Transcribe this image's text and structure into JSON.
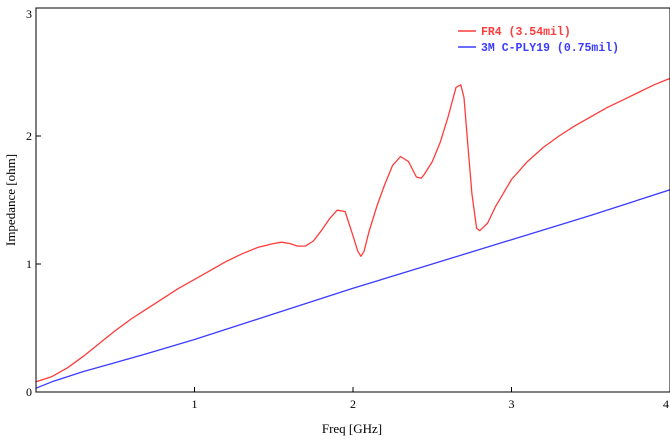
{
  "chart_data": {
    "type": "line",
    "title": "",
    "xlabel": "Freq [GHz]",
    "ylabel": "Impedance [ohm]",
    "xlim": [
      0,
      4
    ],
    "ylim": [
      0,
      3
    ],
    "xticks": [
      1,
      2,
      3,
      4
    ],
    "yticks": [
      0,
      1,
      2,
      3
    ],
    "grid": false,
    "legend_position": "top-right",
    "series": [
      {
        "name": "FR4 (3.54mil)",
        "color": "#ff3b3b",
        "x": [
          0.0,
          0.1,
          0.2,
          0.3,
          0.4,
          0.5,
          0.6,
          0.7,
          0.8,
          0.9,
          1.0,
          1.1,
          1.2,
          1.3,
          1.4,
          1.5,
          1.55,
          1.6,
          1.65,
          1.7,
          1.75,
          1.8,
          1.85,
          1.9,
          1.95,
          2.0,
          2.03,
          2.05,
          2.07,
          2.1,
          2.15,
          2.2,
          2.25,
          2.3,
          2.35,
          2.4,
          2.43,
          2.45,
          2.5,
          2.55,
          2.6,
          2.65,
          2.68,
          2.7,
          2.72,
          2.75,
          2.78,
          2.8,
          2.85,
          2.9,
          3.0,
          3.1,
          3.2,
          3.3,
          3.4,
          3.5,
          3.6,
          3.7,
          3.8,
          3.9,
          4.0
        ],
        "y": [
          0.08,
          0.12,
          0.19,
          0.28,
          0.38,
          0.48,
          0.57,
          0.65,
          0.73,
          0.81,
          0.88,
          0.95,
          1.02,
          1.08,
          1.13,
          1.16,
          1.17,
          1.16,
          1.14,
          1.14,
          1.18,
          1.26,
          1.35,
          1.42,
          1.41,
          1.22,
          1.1,
          1.06,
          1.1,
          1.25,
          1.45,
          1.62,
          1.77,
          1.84,
          1.8,
          1.68,
          1.67,
          1.7,
          1.8,
          1.95,
          2.15,
          2.38,
          2.4,
          2.3,
          2.0,
          1.55,
          1.28,
          1.26,
          1.32,
          1.45,
          1.66,
          1.8,
          1.91,
          2.0,
          2.08,
          2.15,
          2.22,
          2.28,
          2.34,
          2.4,
          2.45
        ]
      },
      {
        "name": "3M C-PLY19 (0.75mil)",
        "color": "#3b3bff",
        "x": [
          0.0,
          0.1,
          0.2,
          0.3,
          0.5,
          0.7,
          1.0,
          1.5,
          2.0,
          2.5,
          3.0,
          3.5,
          4.0
        ],
        "y": [
          0.03,
          0.08,
          0.12,
          0.16,
          0.23,
          0.3,
          0.41,
          0.61,
          0.81,
          1.0,
          1.19,
          1.38,
          1.58
        ]
      }
    ]
  }
}
